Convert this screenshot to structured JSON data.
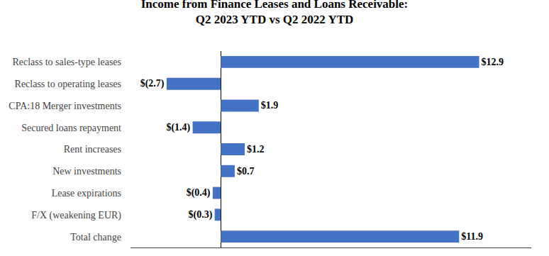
{
  "chart_data": {
    "type": "bar",
    "orientation": "horizontal",
    "title": "Income from Finance Leases and Loans Receivable:\nQ2 2023 YTD vs Q2 2022 YTD",
    "categories": [
      "Total change",
      "F/X (weakening EUR)",
      "Lease expirations",
      "New investments",
      "Rent increases",
      "Secured loans repayment",
      "CPA:18 Merger investments",
      "Reclass to operating leases",
      "Reclass to sales-type leases"
    ],
    "values": [
      11.9,
      -0.3,
      -0.4,
      0.7,
      1.2,
      -1.4,
      1.9,
      -2.7,
      12.9
    ],
    "value_labels": [
      "$11.9",
      "$(0.3)",
      "$(0.4)",
      "$0.7",
      "$1.2",
      "$(1.4)",
      "$1.9",
      "$(2.7)",
      "$12.9"
    ],
    "data_labels": true,
    "color": "#4472C4",
    "xlim": [
      -4.5,
      15.5
    ],
    "grid": false,
    "tick_labels": "y"
  }
}
